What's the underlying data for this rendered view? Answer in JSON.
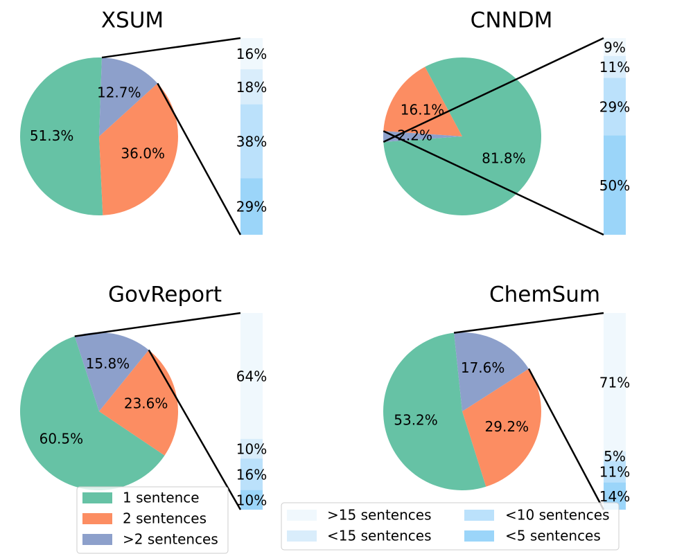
{
  "colors": {
    "sent1": "#66c2a5",
    "sent2": "#fc8d62",
    "sent3": "#8da0cb",
    "gt15": "#f0f8fd",
    "lt15": "#d9edfb",
    "lt10": "#bbe1fb",
    "lt5": "#9bd5f9"
  },
  "chart_data": [
    {
      "type": "pie",
      "title": "XSUM",
      "categories": [
        "1 sentence",
        "2 sentences",
        ">2 sentences"
      ],
      "values": [
        51.3,
        36.0,
        12.7
      ],
      "labels": [
        "51.3%",
        "36.0%",
        "12.7%"
      ],
      "breakdown": {
        "of": ">2 sentences",
        "categories": [
          ">15 sentences",
          "<15 sentences",
          "<10 sentences",
          "<5 sentences"
        ],
        "values": [
          16,
          18,
          38,
          29
        ],
        "labels": [
          "16%",
          "18%",
          "38%",
          "29%"
        ]
      }
    },
    {
      "type": "pie",
      "title": "CNNDM",
      "categories": [
        "1 sentence",
        "2 sentences",
        ">2 sentences"
      ],
      "values": [
        81.8,
        16.1,
        2.2
      ],
      "labels": [
        "81.8%",
        "16.1%",
        "2.2%"
      ],
      "breakdown": {
        "of": ">2 sentences",
        "categories": [
          ">15 sentences",
          "<15 sentences",
          "<10 sentences",
          "<5 sentences"
        ],
        "values": [
          9,
          11,
          29,
          50
        ],
        "labels": [
          "9%",
          "11%",
          "29%",
          "50%"
        ]
      }
    },
    {
      "type": "pie",
      "title": "GovReport",
      "categories": [
        "1 sentence",
        "2 sentences",
        ">2 sentences"
      ],
      "values": [
        60.5,
        23.6,
        15.8
      ],
      "labels": [
        "60.5%",
        "23.6%",
        "15.8%"
      ],
      "breakdown": {
        "of": ">2 sentences",
        "categories": [
          ">15 sentences",
          "<15 sentences",
          "<10 sentences",
          "<5 sentences"
        ],
        "values": [
          64,
          10,
          16,
          10
        ],
        "labels": [
          "64%",
          "10%",
          "16%",
          "10%"
        ]
      }
    },
    {
      "type": "pie",
      "title": "ChemSum",
      "categories": [
        "1 sentence",
        "2 sentences",
        ">2 sentences"
      ],
      "values": [
        53.2,
        29.2,
        17.6
      ],
      "labels": [
        "53.2%",
        "29.2%",
        "17.6%"
      ],
      "breakdown": {
        "of": ">2 sentences",
        "categories": [
          ">15 sentences",
          "<15 sentences",
          "<10 sentences",
          "<5 sentences"
        ],
        "values": [
          71,
          5,
          11,
          14
        ],
        "labels": [
          "71%",
          "5%",
          "11%",
          "14%"
        ]
      }
    }
  ],
  "legends": {
    "pie": [
      {
        "label": "1 sentence",
        "color": "#66c2a5"
      },
      {
        "label": "2 sentences",
        "color": "#fc8d62"
      },
      {
        "label": ">2 sentences",
        "color": "#8da0cb"
      }
    ],
    "bar": [
      {
        "label": ">15 sentences",
        "color": "#f0f8fd"
      },
      {
        "label": "<15 sentences",
        "color": "#d9edfb"
      },
      {
        "label": "<10 sentences",
        "color": "#bbe1fb"
      },
      {
        "label": "<5 sentences",
        "color": "#9bd5f9"
      }
    ]
  }
}
